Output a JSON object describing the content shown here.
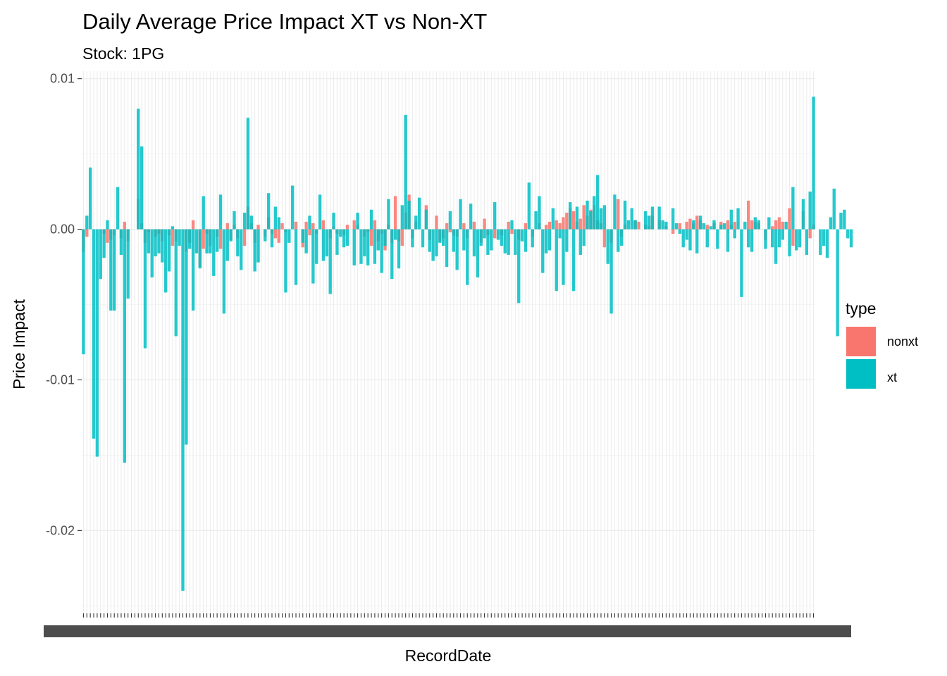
{
  "chart_data": {
    "type": "bar",
    "title": "Daily Average Price Impact XT vs Non-XT",
    "subtitle": "Stock: 1PG",
    "xlabel": "RecordDate",
    "ylabel": "Price Impact",
    "ylim": [
      -0.0255,
      0.0105
    ],
    "yticks": [
      0.01,
      0.0,
      -0.01,
      -0.02
    ],
    "ytick_labels": [
      "0.01",
      "0.00",
      "-0.01",
      "-0.02"
    ],
    "grid": true,
    "legend": {
      "title": "type",
      "position": "right"
    },
    "colors": {
      "nonxt": "#F8766D",
      "xt": "#00BFC4",
      "overlap": "#7F9B99"
    },
    "series": [
      {
        "name": "nonxt",
        "values": [
          -0.0015,
          -0.0005,
          0.0,
          0.0,
          0.0,
          0.0,
          -0.0003,
          -0.0009,
          -0.0007,
          -0.0004,
          0.0,
          -0.0006,
          0.0005,
          -0.0008,
          0.0,
          0.0,
          0.002,
          0.0004,
          -0.0009,
          -0.0002,
          0.0,
          -0.0005,
          -0.0003,
          -0.0008,
          0.0,
          -0.0004,
          -0.0011,
          -0.0008,
          0.0,
          0.0,
          -0.0015,
          -0.0009,
          0.0006,
          0.0,
          -0.0025,
          -0.0013,
          -0.0003,
          -0.0011,
          0.0,
          -0.0005,
          -0.0013,
          0.0,
          0.0004,
          -0.0007,
          0.0003,
          -0.0006,
          0.0,
          -0.0011,
          0.0015,
          0.0004,
          -0.0009,
          0.0003,
          0.0,
          -0.0005,
          0.0008,
          -0.0003,
          -0.0006,
          -0.0009,
          0.0004,
          -0.0002,
          0.0,
          0.0,
          0.0005,
          0.0,
          -0.0012,
          0.0005,
          -0.0004,
          0.0004,
          -0.0003,
          0.0,
          0.0006,
          0.0,
          -0.0006,
          0.0002,
          -0.0003,
          0.0,
          -0.0004,
          0.0003,
          0.0,
          0.0006,
          0.0003,
          0.0,
          -0.0005,
          -0.0002,
          -0.0011,
          0.0006,
          -0.0008,
          -0.0003,
          -0.0014,
          0.0003,
          -0.0009,
          0.0022,
          -0.0008,
          -0.0011,
          0.0011,
          0.0023,
          -0.0006,
          0.0005,
          0.0,
          0.0,
          0.0016,
          -0.0007,
          0.0,
          0.0009,
          -0.0008,
          -0.0006,
          0.0004,
          -0.0002,
          -0.0004,
          -0.0005,
          0.0,
          0.0004,
          -0.0006,
          0.0,
          0.0005,
          0.0,
          -0.0009,
          0.0007,
          -0.0004,
          0.0,
          -0.0006,
          0.0,
          -0.0004,
          0.0,
          0.0005,
          -0.0003,
          0.0,
          -0.0007,
          0.0,
          0.0004,
          0.0,
          -0.0005,
          0.0,
          0.0004,
          0.0,
          0.0003,
          0.0005,
          0.0,
          0.0006,
          0.0004,
          0.0008,
          0.0011,
          0.0014,
          0.0012,
          0.0005,
          0.0007,
          0.0016,
          0.0009,
          0.0013,
          0.0016,
          0.0006,
          0.0004,
          -0.0012,
          0.0,
          -0.0009,
          0.0,
          0.002,
          -0.0005,
          0.0003,
          0.0,
          0.0,
          0.0006,
          0.0005,
          0.0,
          0.0003,
          0.0002,
          0.0009,
          0.0,
          0.0006,
          0.0,
          0.0002,
          0.0,
          -0.0003,
          0.0,
          0.0004,
          0.0,
          0.0005,
          0.0007,
          0.0004,
          0.0009,
          0.0006,
          0.0,
          0.0003,
          0.0,
          0.0004,
          0.0,
          0.0005,
          0.0,
          0.0006,
          0.0003,
          0.0005,
          0.0,
          0.0,
          0.0,
          0.0019,
          0.0006,
          0.0005,
          0.0004,
          0.0,
          -0.0007,
          0.0,
          0.0002,
          0.0006,
          0.0008,
          0.0005,
          0.0,
          0.0014,
          -0.0011,
          0.0,
          0.0,
          0.0012,
          0.0,
          -0.0006,
          0.0003
        ]
      },
      {
        "name": "xt",
        "values": [
          -0.0083,
          0.0009,
          0.0041,
          -0.0139,
          -0.0151,
          -0.0033,
          -0.0019,
          0.0006,
          -0.0054,
          -0.0054,
          0.0028,
          -0.0017,
          -0.0155,
          -0.0046,
          0.0,
          0.0,
          0.008,
          0.0055,
          -0.0079,
          -0.0016,
          -0.0032,
          -0.0018,
          -0.0016,
          -0.0022,
          -0.0042,
          -0.0028,
          0.0002,
          -0.0071,
          -0.0011,
          -0.024,
          -0.0143,
          -0.0013,
          -0.0054,
          -0.0016,
          -0.0026,
          0.0022,
          -0.0016,
          -0.0016,
          -0.0031,
          -0.0015,
          0.0023,
          -0.0056,
          -0.0021,
          -0.0008,
          0.0012,
          -0.0018,
          -0.0027,
          0.0011,
          0.0074,
          0.0009,
          -0.0028,
          -0.0022,
          0.0,
          -0.0008,
          0.0024,
          -0.0012,
          0.0015,
          0.0008,
          0.0,
          -0.0042,
          -0.0009,
          0.0029,
          -0.0037,
          0.0,
          -0.0009,
          -0.0016,
          0.0009,
          -0.0036,
          -0.0023,
          0.0023,
          -0.0021,
          -0.0018,
          -0.0043,
          0.0011,
          -0.0017,
          -0.0005,
          -0.0012,
          -0.0011,
          0.0,
          -0.0024,
          0.0011,
          -0.0023,
          -0.0018,
          -0.0024,
          0.0013,
          -0.0023,
          -0.0014,
          -0.0029,
          -0.0011,
          0.002,
          -0.0033,
          -0.0007,
          -0.0026,
          0.0016,
          0.0076,
          0.0019,
          -0.0012,
          0.0009,
          0.0021,
          -0.0012,
          0.0013,
          -0.0015,
          -0.0021,
          -0.0018,
          -0.0009,
          -0.0011,
          -0.0025,
          0.0012,
          -0.0015,
          -0.0027,
          0.002,
          -0.0014,
          -0.0037,
          0.0017,
          -0.0018,
          -0.0032,
          -0.0011,
          -0.0006,
          -0.0017,
          -0.0014,
          0.0018,
          -0.0007,
          -0.0011,
          -0.0016,
          -0.0017,
          0.0006,
          -0.0017,
          -0.0049,
          -0.0008,
          -0.0015,
          0.0031,
          -0.0012,
          0.0012,
          0.0022,
          -0.0029,
          -0.0016,
          -0.0014,
          0.0014,
          -0.0041,
          -0.0006,
          -0.0037,
          -0.0015,
          0.0018,
          -0.0041,
          0.0015,
          -0.0017,
          -0.0011,
          0.0019,
          0.0012,
          0.0022,
          0.0036,
          0.0014,
          0.0016,
          -0.0023,
          -0.0056,
          0.0023,
          -0.0015,
          -0.0011,
          0.0019,
          0.0006,
          0.0014,
          0.0006,
          0.0,
          0.0,
          0.0012,
          0.0009,
          0.0015,
          0.0,
          0.0015,
          0.0006,
          0.0005,
          0.0,
          0.0014,
          0.0004,
          -0.0003,
          -0.0012,
          -0.0007,
          -0.0014,
          0.0006,
          -0.0016,
          0.0009,
          0.0004,
          -0.0012,
          0.0002,
          0.0006,
          -0.0013,
          0.0003,
          0.0004,
          -0.0015,
          0.0013,
          -0.0006,
          0.0014,
          -0.0045,
          0.0005,
          -0.0012,
          -0.0015,
          0.0008,
          0.0006,
          0.0,
          -0.0013,
          0.0008,
          -0.0012,
          -0.0023,
          -0.0012,
          -0.0007,
          0.0005,
          -0.0018,
          0.0028,
          -0.0014,
          -0.0012,
          0.002,
          -0.0017,
          0.0025,
          0.0088,
          0.0,
          -0.0017,
          -0.0011,
          -0.0019,
          0.0008,
          0.0027,
          -0.0071,
          0.0011,
          0.0013,
          -0.0006,
          -0.0012
        ]
      }
    ],
    "x_tick_labels_note": ""
  },
  "legend_items": [
    "nonxt",
    "xt"
  ]
}
